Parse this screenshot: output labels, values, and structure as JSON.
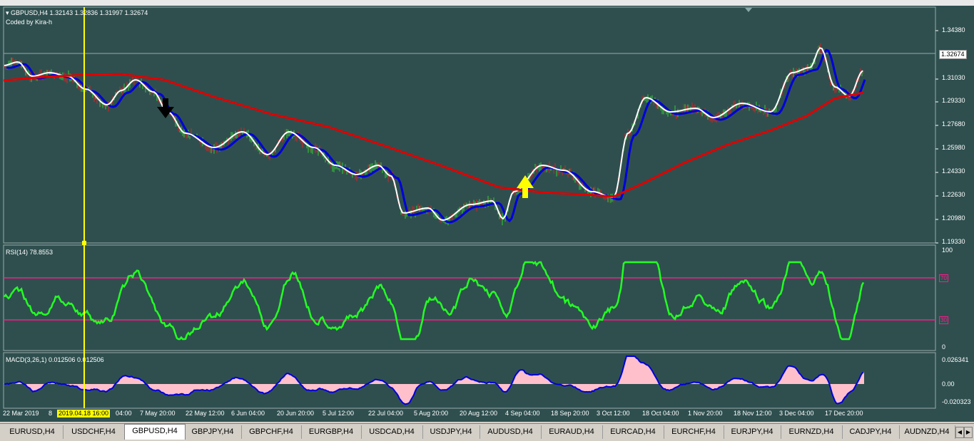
{
  "chart": {
    "header_label": "GBPUSD,H4  1.32143 1.32836 1.31997 1.32674",
    "subtitle": "Coded by Kira-h",
    "current_price": "1.32674",
    "price_ticks": [
      "1.34380",
      "1.31030",
      "1.29330",
      "1.27680",
      "1.25980",
      "1.24330",
      "1.22630",
      "1.20980",
      "1.19330"
    ],
    "time_labels": [
      "22 Mar 2019",
      "8",
      "04:00",
      "7 May 20:00",
      "22 May 12:00",
      "6 Jun 04:00",
      "20 Jun 20:00",
      "5 Jul 12:00",
      "22 Jul 04:00",
      "5 Aug 20:00",
      "20 Aug 12:00",
      "4 Sep 04:00",
      "18 Sep 20:00",
      "3 Oct 12:00",
      "18 Oct 04:00",
      "1 Nov 20:00",
      "18 Nov 12:00",
      "3 Dec 04:00",
      "17 Dec 20:00"
    ],
    "cursor_time": "2019.04.18 16:00"
  },
  "rsi": {
    "label": "RSI(14) 78.8553",
    "ticks": [
      "100",
      "0"
    ],
    "levels": [
      "70",
      "30"
    ]
  },
  "macd": {
    "label": "MACD(3,26,1) 0.012506 0.012506",
    "ticks": [
      "0.026341",
      "0.00",
      "-0.020323"
    ]
  },
  "colors": {
    "background": "#2f4f4f",
    "ma_red": "#e00000",
    "ma_blue": "#0000dd",
    "ma_white": "#ffffff",
    "rsi_line": "#22ff22",
    "rsi_levels": "#ff1a8c",
    "macd_fill": "#ffc0cb",
    "macd_line": "#0000dd",
    "cursor": "#ffff00",
    "sell_arrow": "#000000",
    "buy_arrow": "#ffff00"
  },
  "tabs": [
    "EURUSD,H4",
    "USDCHF,H4",
    "GBPUSD,H4",
    "GBPJPY,H4",
    "GBPCHF,H4",
    "EURGBP,H4",
    "USDCAD,H4",
    "USDJPY,H4",
    "AUDUSD,H4",
    "EURAUD,H4",
    "EURCAD,H4",
    "EURCHF,H4",
    "EURJPY,H4",
    "EURNZD,H4",
    "CADJPY,H4",
    "AUDNZD,H4"
  ],
  "active_tab": "GBPUSD,H4"
}
